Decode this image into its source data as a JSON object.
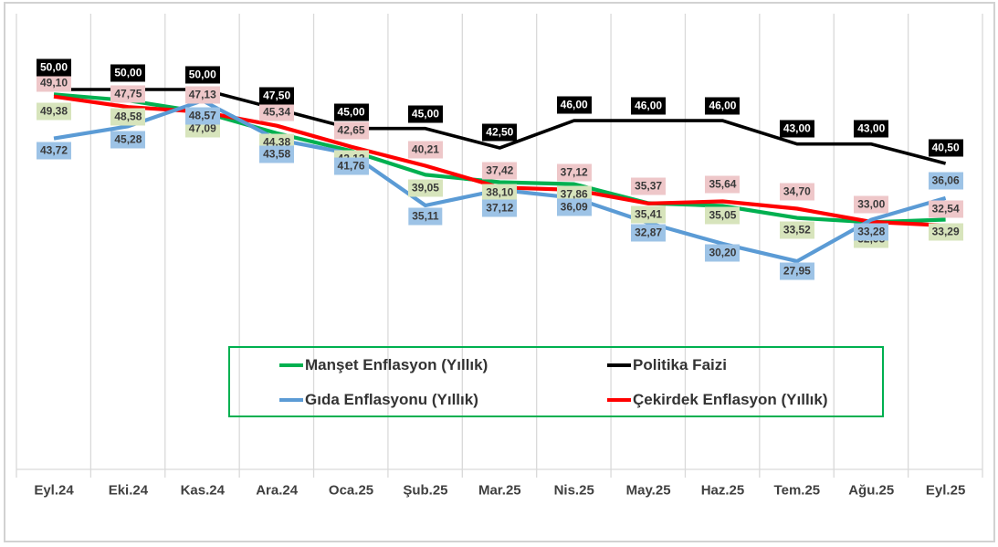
{
  "chart_data": {
    "type": "line",
    "title": "",
    "categories": [
      "Eyl.24",
      "Eki.24",
      "Kas.24",
      "Ara.24",
      "Oca.25",
      "Şub.25",
      "Mar.25",
      "Nis.25",
      "May.25",
      "Haz.25",
      "Tem.25",
      "Ağu.25",
      "Eyl.25"
    ],
    "decimal_separator": ",",
    "ylim": [
      26,
      52
    ],
    "grid": "vertical-only",
    "gridline_color": "#D9D9D9",
    "axis_label_color": "#404040",
    "series": [
      {
        "key": "politika",
        "name": "Politika Faizi",
        "color": "#000000",
        "label_bg": "#000000",
        "label_fg": "#FFFFFF",
        "values": [
          50.0,
          50.0,
          50.0,
          47.5,
          45.0,
          45.0,
          42.5,
          46.0,
          46.0,
          46.0,
          43.0,
          43.0,
          40.5
        ],
        "display_labels": [
          "50,00",
          "50,00",
          "50,00",
          "47,50",
          "45,00",
          "45,00",
          "42,50",
          "46,00",
          "46,00",
          "46,00",
          "43,00",
          "43,00",
          "40,50"
        ]
      },
      {
        "key": "manset",
        "name": "Manşet Enflasyon (Yıllık)",
        "color": "#00B050",
        "label_bg": "#D7E4BC",
        "label_fg": "#3A3A3A",
        "values": [
          49.38,
          48.58,
          47.09,
          44.38,
          42.12,
          39.05,
          38.1,
          37.86,
          35.41,
          35.05,
          33.52,
          32.95,
          33.29
        ],
        "display_labels": [
          "49,38",
          "48,58",
          "47,09",
          "44,38",
          "42,12",
          "39,05",
          "38,10",
          "37,86",
          "35,41",
          "35,05",
          "33,52",
          "32,95",
          "33,29"
        ]
      },
      {
        "key": "cekirdek",
        "name": "Çekirdek Enflasyon (Yıllık)",
        "color": "#FF0000",
        "label_bg": "#EEC7C9",
        "label_fg": "#3A3A3A",
        "values": [
          49.1,
          47.75,
          47.13,
          45.34,
          42.65,
          40.21,
          37.42,
          37.12,
          35.37,
          35.64,
          34.7,
          33.0,
          32.54
        ],
        "display_labels": [
          "49,10",
          "47,75",
          "47,13",
          "45,34",
          "42,65",
          "40,21",
          "37,42",
          "37,12",
          "35,37",
          "35,64",
          "34,70",
          "33,00",
          "32,54"
        ]
      },
      {
        "key": "gida",
        "name": "Gıda Enflasyonu (Yıllık)",
        "color": "#5B9BD5",
        "label_bg": "#9DC3E6",
        "label_fg": "#3A3A3A",
        "values": [
          43.72,
          45.28,
          48.57,
          43.58,
          41.76,
          35.11,
          37.12,
          36.09,
          32.87,
          30.2,
          27.95,
          33.28,
          36.06
        ],
        "display_labels": [
          "43,72",
          "45,28",
          "48,57",
          "43,58",
          "41,76",
          "35,11",
          "37,12",
          "36,09",
          "32,87",
          "30,20",
          "27,95",
          "33,28",
          "36,06"
        ]
      }
    ],
    "legend": {
      "position": "bottom-center",
      "border_color": "#00B050",
      "entries": [
        "Manşet Enflasyon (Yıllık)",
        "Politika Faizi",
        "Gıda Enflasyonu (Yıllık)",
        "Çekirdek Enflasyon (Yıllık)"
      ]
    }
  }
}
